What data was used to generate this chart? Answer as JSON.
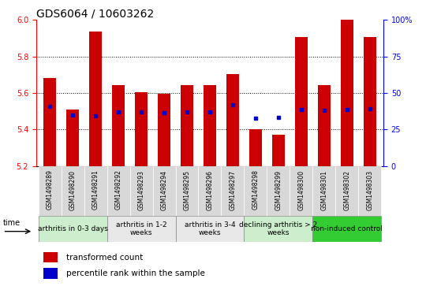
{
  "title": "GDS6064 / 10603262",
  "samples": [
    "GSM1498289",
    "GSM1498290",
    "GSM1498291",
    "GSM1498292",
    "GSM1498293",
    "GSM1498294",
    "GSM1498295",
    "GSM1498296",
    "GSM1498297",
    "GSM1498298",
    "GSM1498299",
    "GSM1498300",
    "GSM1498301",
    "GSM1498302",
    "GSM1498303"
  ],
  "bar_values": [
    5.68,
    5.51,
    5.935,
    5.645,
    5.605,
    5.595,
    5.645,
    5.645,
    5.705,
    5.4,
    5.37,
    5.905,
    5.645,
    6.0,
    5.905
  ],
  "dot_values": [
    5.525,
    5.48,
    5.475,
    5.495,
    5.495,
    5.49,
    5.495,
    5.495,
    5.535,
    5.46,
    5.465,
    5.51,
    5.505,
    5.51,
    5.515
  ],
  "y_min": 5.2,
  "y_max": 6.0,
  "y_ticks": [
    5.2,
    5.4,
    5.6,
    5.8,
    6.0
  ],
  "right_y_ticks": [
    0,
    25,
    50,
    75,
    100
  ],
  "right_y_labels": [
    "0",
    "25",
    "50",
    "75",
    "100%"
  ],
  "bar_color": "#CC0000",
  "dot_color": "#0000CC",
  "groups": [
    {
      "label": "arthritis in 0-3 days",
      "start": 0,
      "end": 3,
      "color": "#cceecc"
    },
    {
      "label": "arthritis in 1-2\nweeks",
      "start": 3,
      "end": 6,
      "color": "#e8e8e8"
    },
    {
      "label": "arthritis in 3-4\nweeks",
      "start": 6,
      "end": 9,
      "color": "#e8e8e8"
    },
    {
      "label": "declining arthritis > 2\nweeks",
      "start": 9,
      "end": 12,
      "color": "#cceecc"
    },
    {
      "label": "non-induced control",
      "start": 12,
      "end": 15,
      "color": "#33cc33"
    }
  ],
  "xlabel": "time",
  "legend_bar_label": "transformed count",
  "legend_dot_label": "percentile rank within the sample",
  "title_fontsize": 10,
  "tick_fontsize": 7,
  "sample_fontsize": 5.5,
  "group_fontsize": 6.5,
  "legend_fontsize": 7.5
}
